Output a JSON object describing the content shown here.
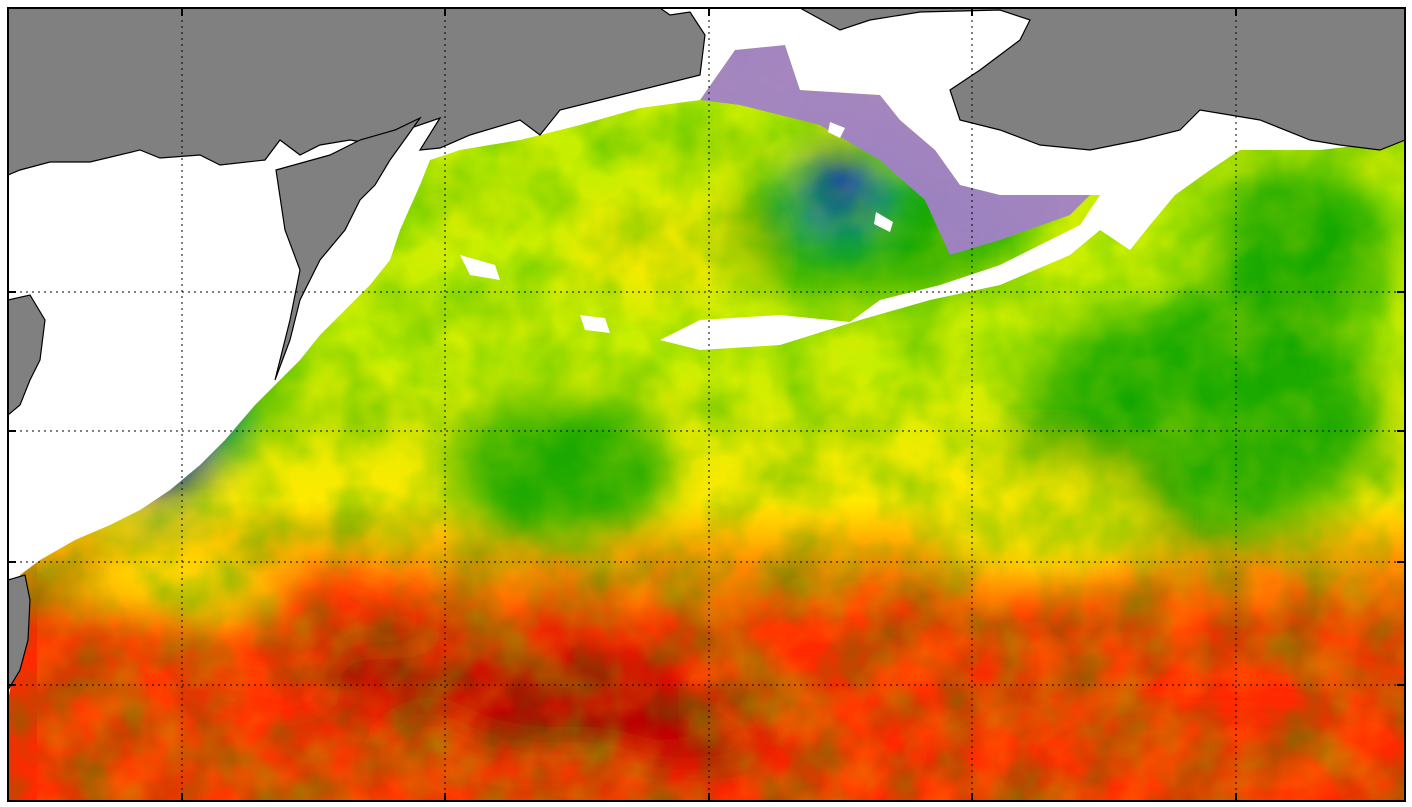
{
  "map": {
    "colors": {
      "land": "#808080",
      "no_data": "#ffffff",
      "ice_edge": "#a27fc9",
      "low": "#0000e6",
      "mid_low": "#00a000",
      "mid": "#c6ef00",
      "mid_high": "#ffea00",
      "high": "#ff2a00",
      "very_high": "#b00000"
    },
    "gridlines": "dotted",
    "tick_marks": "inward"
  }
}
